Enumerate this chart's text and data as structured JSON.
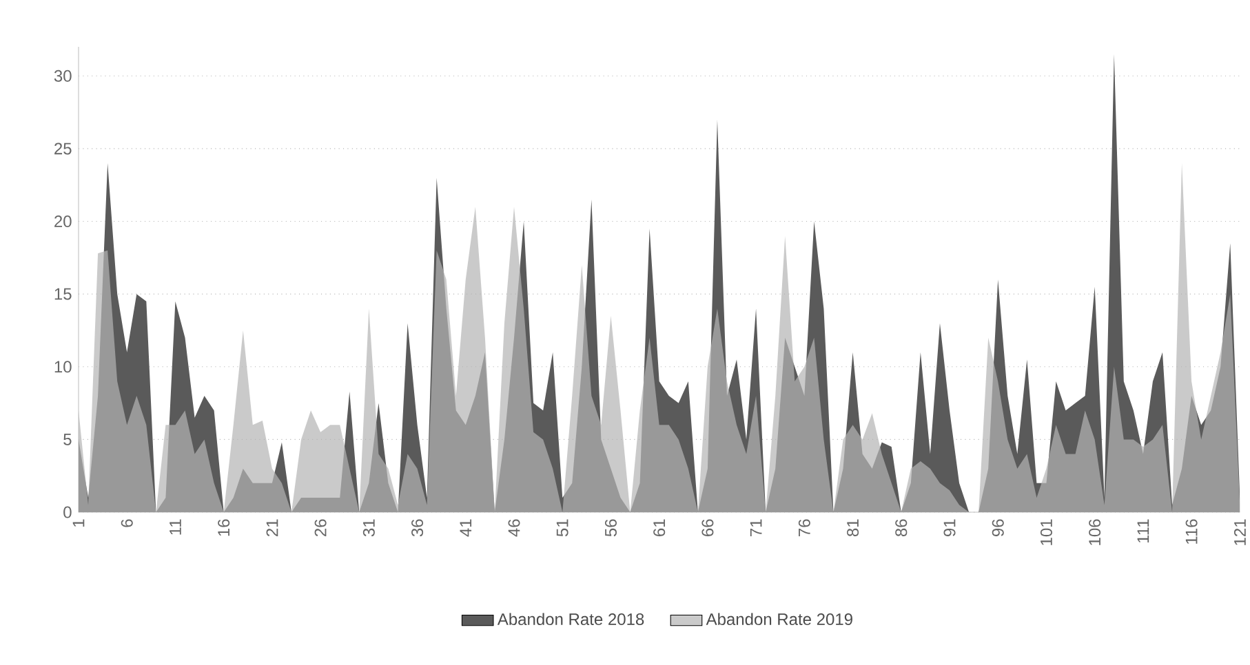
{
  "chart_data": {
    "type": "area",
    "categories": [
      "1",
      null,
      null,
      null,
      null,
      "6",
      null,
      null,
      null,
      null,
      "11",
      null,
      null,
      null,
      null,
      "16",
      null,
      null,
      null,
      null,
      "21",
      null,
      null,
      null,
      null,
      "26",
      null,
      null,
      null,
      null,
      "31",
      null,
      null,
      null,
      null,
      "36",
      null,
      null,
      null,
      null,
      "41",
      null,
      null,
      null,
      null,
      "46",
      null,
      null,
      null,
      null,
      "51",
      null,
      null,
      null,
      null,
      "56",
      null,
      null,
      null,
      null,
      "61",
      null,
      null,
      null,
      null,
      "66",
      null,
      null,
      null,
      null,
      "71",
      null,
      null,
      null,
      null,
      "76",
      null,
      null,
      null,
      null,
      "81",
      null,
      null,
      null,
      null,
      "86",
      null,
      null,
      null,
      null,
      "91",
      null,
      null,
      null,
      null,
      "96",
      null,
      null,
      null,
      null,
      "101",
      null,
      null,
      null,
      null,
      "106",
      null,
      null,
      null,
      null,
      "111",
      null,
      null,
      null,
      null,
      "116",
      null,
      null,
      null,
      null,
      "121"
    ],
    "series": [
      {
        "name": "Abandon Rate 2018",
        "color": "#5a5a5a",
        "values": [
          5,
          1,
          8,
          24,
          15,
          11,
          15,
          14.5,
          0,
          1,
          14.5,
          12,
          6.5,
          8,
          7,
          0,
          1,
          3,
          2,
          2,
          2,
          4.8,
          0,
          1,
          1,
          1,
          1,
          1,
          8.3,
          0,
          2,
          7.5,
          2,
          0,
          13,
          6,
          1,
          23,
          14,
          7,
          6,
          8,
          11,
          0,
          5,
          12,
          20,
          7.5,
          7,
          11,
          1,
          2,
          10,
          21.5,
          5,
          3,
          1,
          0,
          2,
          19.5,
          9,
          8,
          7.5,
          9,
          0,
          3,
          27,
          8,
          10.5,
          5,
          14,
          0,
          3,
          12,
          10,
          8,
          20,
          14,
          0,
          3,
          11,
          4,
          3,
          4.8,
          4.5,
          0,
          2,
          11,
          4,
          13,
          7,
          2,
          0,
          0,
          3,
          16,
          8,
          4,
          10.5,
          2,
          2,
          9,
          7,
          7.5,
          8,
          15.5,
          1,
          31.5,
          9,
          7,
          4,
          9,
          11,
          0.5,
          3,
          8,
          6,
          7,
          10,
          18.5,
          1
        ]
      },
      {
        "name": "Abandon Rate 2019",
        "color": "#b4b4b4",
        "values": [
          7,
          0.5,
          17.8,
          18,
          9,
          6,
          8,
          6,
          0,
          6,
          6,
          7,
          4,
          5,
          2,
          0,
          6,
          12.5,
          6,
          6.3,
          3,
          2,
          0,
          5,
          7,
          5.5,
          6,
          6,
          3,
          0,
          14,
          4,
          3,
          0.5,
          4,
          3,
          0.5,
          18,
          16,
          8,
          16,
          21,
          12,
          0,
          13,
          21,
          14,
          5.5,
          5,
          3,
          0,
          8,
          17,
          8,
          6,
          13.5,
          7,
          0,
          7,
          12,
          6,
          6,
          5,
          3,
          0,
          10,
          14,
          9,
          6,
          4,
          8,
          0,
          8,
          19,
          9,
          10,
          12,
          5,
          0,
          5,
          6,
          5,
          6.8,
          4,
          2,
          0,
          3,
          3.5,
          3,
          2,
          1.5,
          0.5,
          0,
          0,
          12,
          9,
          5,
          3,
          4,
          1,
          3,
          6,
          4,
          4,
          7,
          5,
          0.5,
          10,
          5,
          5,
          4.5,
          5,
          6,
          0,
          24,
          9,
          5,
          8,
          11,
          15,
          0.5
        ]
      }
    ],
    "ylim": [
      0,
      32
    ],
    "yticks": [
      0,
      5,
      10,
      15,
      20,
      25,
      30
    ],
    "grid": "y",
    "legend": "bottom"
  }
}
